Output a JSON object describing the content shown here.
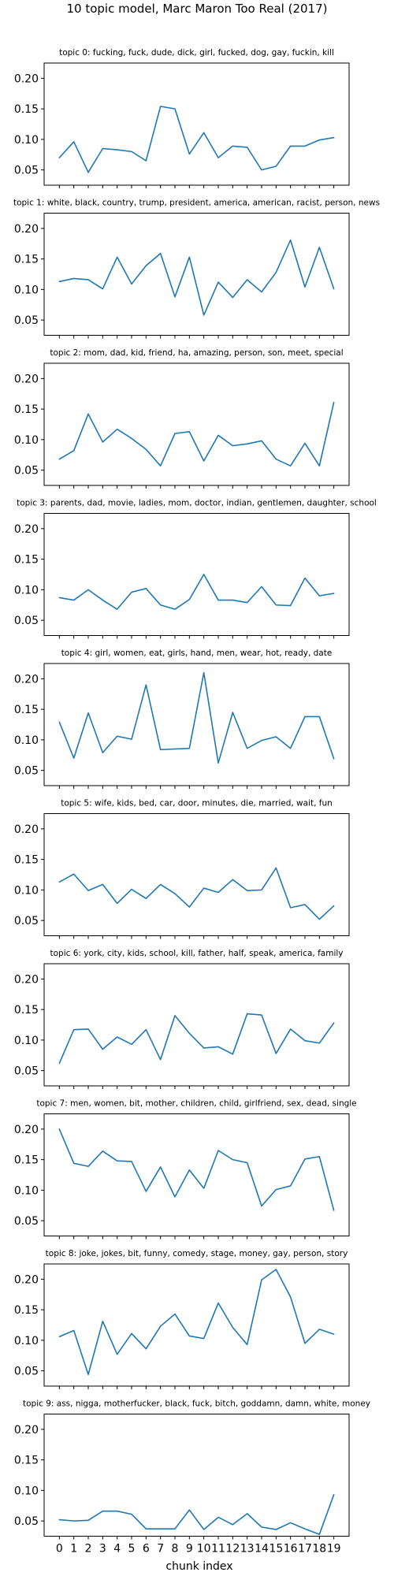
{
  "figure": {
    "title": "10 topic model, Marc Maron Too Real (2017)",
    "xlabel": "chunk index",
    "line_color": "#1f77b4"
  },
  "chart_data": [
    {
      "type": "line",
      "title": "topic 0: fucking, fuck, dude, dick, girl, fucked, dog, gay, fuckin, kill",
      "xlabel": "",
      "ylabel": "",
      "x": [
        0,
        1,
        2,
        3,
        4,
        5,
        6,
        7,
        8,
        9,
        10,
        11,
        12,
        13,
        14,
        15,
        16,
        17,
        18,
        19
      ],
      "ylim": [
        0.025,
        0.225
      ],
      "yticks": [
        "0.05",
        "0.10",
        "0.15",
        "0.20"
      ],
      "xticks": [],
      "series": [
        {
          "values": [
            0.07,
            0.096,
            0.046,
            0.085,
            0.083,
            0.08,
            0.065,
            0.154,
            0.15,
            0.076,
            0.111,
            0.07,
            0.089,
            0.087,
            0.05,
            0.056,
            0.089,
            0.089,
            0.099,
            0.103
          ]
        }
      ]
    },
    {
      "type": "line",
      "title": "topic 1: white, black, country, trump, president, america, american, racist, person, news",
      "xlabel": "",
      "ylabel": "",
      "x": [
        0,
        1,
        2,
        3,
        4,
        5,
        6,
        7,
        8,
        9,
        10,
        11,
        12,
        13,
        14,
        15,
        16,
        17,
        18,
        19
      ],
      "ylim": [
        0.025,
        0.225
      ],
      "yticks": [
        "0.05",
        "0.10",
        "0.15",
        "0.20"
      ],
      "xticks": [],
      "series": [
        {
          "values": [
            0.113,
            0.118,
            0.116,
            0.101,
            0.153,
            0.109,
            0.139,
            0.159,
            0.088,
            0.153,
            0.058,
            0.112,
            0.087,
            0.116,
            0.096,
            0.128,
            0.181,
            0.104,
            0.169,
            0.101
          ]
        }
      ]
    },
    {
      "type": "line",
      "title": "topic 2: mom, dad, kid, friend, ha, amazing, person, son, meet, special",
      "xlabel": "",
      "ylabel": "",
      "x": [
        0,
        1,
        2,
        3,
        4,
        5,
        6,
        7,
        8,
        9,
        10,
        11,
        12,
        13,
        14,
        15,
        16,
        17,
        18,
        19
      ],
      "ylim": [
        0.025,
        0.225
      ],
      "yticks": [
        "0.05",
        "0.10",
        "0.15",
        "0.20"
      ],
      "xticks": [],
      "series": [
        {
          "values": [
            0.068,
            0.082,
            0.142,
            0.096,
            0.117,
            0.102,
            0.084,
            0.057,
            0.11,
            0.113,
            0.065,
            0.107,
            0.09,
            0.093,
            0.098,
            0.068,
            0.057,
            0.094,
            0.057,
            0.161
          ]
        }
      ]
    },
    {
      "type": "line",
      "title": "topic 3: parents, dad, movie, ladies, mom, doctor, indian, gentlemen, daughter, school",
      "xlabel": "",
      "ylabel": "",
      "x": [
        0,
        1,
        2,
        3,
        4,
        5,
        6,
        7,
        8,
        9,
        10,
        11,
        12,
        13,
        14,
        15,
        16,
        17,
        18,
        19
      ],
      "ylim": [
        0.025,
        0.225
      ],
      "yticks": [
        "0.05",
        "0.10",
        "0.15",
        "0.20"
      ],
      "xticks": [],
      "series": [
        {
          "values": [
            0.087,
            0.083,
            0.1,
            0.083,
            0.068,
            0.096,
            0.102,
            0.075,
            0.068,
            0.084,
            0.125,
            0.083,
            0.083,
            0.079,
            0.105,
            0.075,
            0.074,
            0.119,
            0.09,
            0.094
          ]
        }
      ]
    },
    {
      "type": "line",
      "title": "topic 4: girl, women, eat, girls, hand, men, wear, hot, ready, date",
      "xlabel": "",
      "ylabel": "",
      "x": [
        0,
        1,
        2,
        3,
        4,
        5,
        6,
        7,
        8,
        9,
        10,
        11,
        12,
        13,
        14,
        15,
        16,
        17,
        18,
        19
      ],
      "ylim": [
        0.025,
        0.225
      ],
      "yticks": [
        "0.05",
        "0.10",
        "0.15",
        "0.20"
      ],
      "xticks": [],
      "series": [
        {
          "values": [
            0.129,
            0.07,
            0.144,
            0.079,
            0.106,
            0.101,
            0.19,
            0.084,
            0.085,
            0.086,
            0.21,
            0.062,
            0.145,
            0.086,
            0.099,
            0.105,
            0.086,
            0.138,
            0.138,
            0.069
          ]
        }
      ]
    },
    {
      "type": "line",
      "title": "topic 5: wife, kids, bed, car, door, minutes, die, married, wait, fun",
      "xlabel": "",
      "ylabel": "",
      "x": [
        0,
        1,
        2,
        3,
        4,
        5,
        6,
        7,
        8,
        9,
        10,
        11,
        12,
        13,
        14,
        15,
        16,
        17,
        18,
        19
      ],
      "ylim": [
        0.025,
        0.225
      ],
      "yticks": [
        "0.05",
        "0.10",
        "0.15",
        "0.20"
      ],
      "xticks": [],
      "series": [
        {
          "values": [
            0.113,
            0.126,
            0.099,
            0.109,
            0.078,
            0.101,
            0.086,
            0.109,
            0.094,
            0.072,
            0.103,
            0.096,
            0.117,
            0.099,
            0.1,
            0.136,
            0.071,
            0.076,
            0.052,
            0.074
          ]
        }
      ]
    },
    {
      "type": "line",
      "title": "topic 6: york, city, kids, school, kill, father, half, speak, america, family",
      "xlabel": "",
      "ylabel": "",
      "x": [
        0,
        1,
        2,
        3,
        4,
        5,
        6,
        7,
        8,
        9,
        10,
        11,
        12,
        13,
        14,
        15,
        16,
        17,
        18,
        19
      ],
      "ylim": [
        0.025,
        0.225
      ],
      "yticks": [
        "0.05",
        "0.10",
        "0.15",
        "0.20"
      ],
      "xticks": [],
      "series": [
        {
          "values": [
            0.062,
            0.117,
            0.118,
            0.085,
            0.105,
            0.093,
            0.117,
            0.068,
            0.14,
            0.111,
            0.087,
            0.089,
            0.077,
            0.143,
            0.141,
            0.078,
            0.118,
            0.099,
            0.095,
            0.128
          ]
        }
      ]
    },
    {
      "type": "line",
      "title": "topic 7: men, women, bit, mother, children, child, girlfriend, sex, dead, single",
      "xlabel": "",
      "ylabel": "",
      "x": [
        0,
        1,
        2,
        3,
        4,
        5,
        6,
        7,
        8,
        9,
        10,
        11,
        12,
        13,
        14,
        15,
        16,
        17,
        18,
        19
      ],
      "ylim": [
        0.025,
        0.225
      ],
      "yticks": [
        "0.05",
        "0.10",
        "0.15",
        "0.20"
      ],
      "xticks": [],
      "series": [
        {
          "values": [
            0.2,
            0.144,
            0.139,
            0.164,
            0.148,
            0.147,
            0.098,
            0.138,
            0.089,
            0.133,
            0.103,
            0.165,
            0.15,
            0.145,
            0.074,
            0.101,
            0.107,
            0.151,
            0.155,
            0.067
          ]
        }
      ]
    },
    {
      "type": "line",
      "title": "topic 8: joke, jokes, bit, funny, comedy, stage, money, gay, person, story",
      "xlabel": "",
      "ylabel": "",
      "x": [
        0,
        1,
        2,
        3,
        4,
        5,
        6,
        7,
        8,
        9,
        10,
        11,
        12,
        13,
        14,
        15,
        16,
        17,
        18,
        19
      ],
      "ylim": [
        0.025,
        0.225
      ],
      "yticks": [
        "0.05",
        "0.10",
        "0.15",
        "0.20"
      ],
      "xticks": [],
      "series": [
        {
          "values": [
            0.106,
            0.116,
            0.044,
            0.131,
            0.077,
            0.111,
            0.086,
            0.123,
            0.143,
            0.107,
            0.103,
            0.161,
            0.121,
            0.093,
            0.199,
            0.216,
            0.171,
            0.095,
            0.118,
            0.11
          ]
        }
      ]
    },
    {
      "type": "line",
      "title": "topic 9: ass, nigga, motherfucker, black, fuck, bitch, goddamn, damn, white, money",
      "xlabel": "chunk index",
      "ylabel": "",
      "x": [
        0,
        1,
        2,
        3,
        4,
        5,
        6,
        7,
        8,
        9,
        10,
        11,
        12,
        13,
        14,
        15,
        16,
        17,
        18,
        19
      ],
      "ylim": [
        0.025,
        0.225
      ],
      "yticks": [
        "0.05",
        "0.10",
        "0.15",
        "0.20"
      ],
      "xticks": [
        "0",
        "1",
        "2",
        "3",
        "4",
        "5",
        "6",
        "7",
        "8",
        "9",
        "10",
        "11",
        "12",
        "13",
        "14",
        "15",
        "16",
        "17",
        "18",
        "19"
      ],
      "series": [
        {
          "values": [
            0.052,
            0.05,
            0.051,
            0.066,
            0.066,
            0.061,
            0.037,
            0.037,
            0.037,
            0.068,
            0.036,
            0.056,
            0.044,
            0.062,
            0.04,
            0.036,
            0.047,
            0.037,
            0.028,
            0.093
          ]
        }
      ]
    }
  ]
}
